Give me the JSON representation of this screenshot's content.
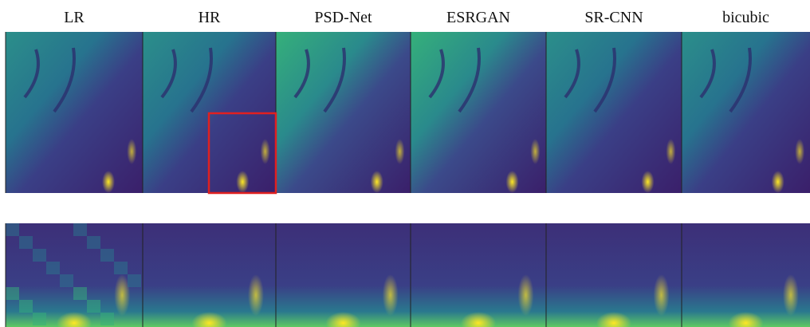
{
  "columns": [
    "LR",
    "HR",
    "PSD-Net",
    "ESRGAN",
    "SR-CNN",
    "bicubic"
  ]
}
